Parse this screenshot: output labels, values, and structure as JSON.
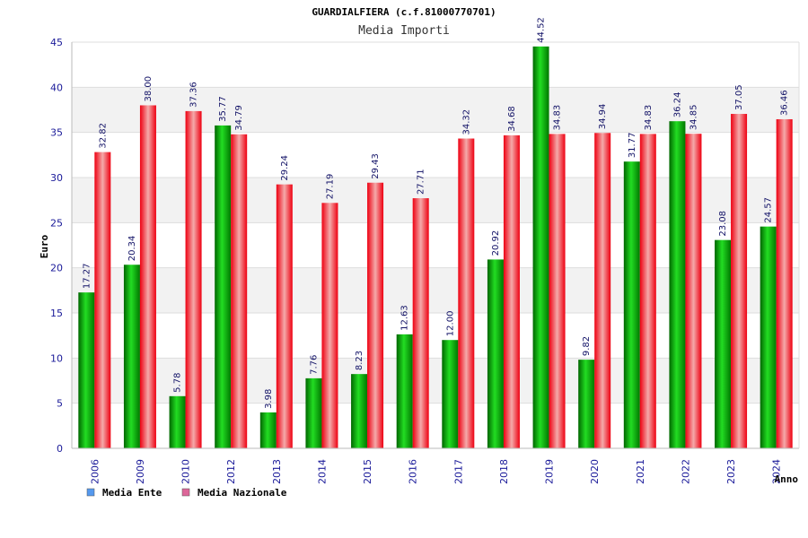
{
  "chart_data": {
    "type": "bar",
    "title": "GUARDIALFIERA (c.f.81000770701)",
    "subtitle": "Media Importi",
    "xlabel": "Anno",
    "ylabel": "Euro",
    "ylim": [
      0,
      45
    ],
    "yticks": [
      "0",
      "5",
      "10",
      "15",
      "20",
      "25",
      "30",
      "35",
      "40",
      "45"
    ],
    "categories": [
      "2006",
      "2009",
      "2010",
      "2012",
      "2013",
      "2014",
      "2015",
      "2016",
      "2017",
      "2018",
      "2019",
      "2020",
      "2021",
      "2022",
      "2023",
      "2024"
    ],
    "series": [
      {
        "name": "Media Ente",
        "color": "#00aa00",
        "values": [
          17.27,
          20.34,
          5.78,
          35.77,
          3.98,
          7.76,
          8.23,
          12.63,
          12.0,
          20.92,
          44.52,
          9.82,
          31.77,
          36.24,
          23.08,
          24.57
        ],
        "labels": [
          "17.27",
          "20.34",
          "5.78",
          "35.77",
          "3.98",
          "7.76",
          "8.23",
          "12.63",
          "12.00",
          "20.92",
          "44.52",
          "9.82",
          "31.77",
          "36.24",
          "23.08",
          "24.57"
        ]
      },
      {
        "name": "Media Nazionale",
        "color": "#ee1122",
        "values": [
          32.82,
          38.0,
          37.36,
          34.79,
          29.24,
          27.19,
          29.43,
          27.71,
          34.32,
          34.68,
          34.83,
          34.94,
          34.83,
          34.85,
          37.05,
          36.46
        ],
        "labels": [
          "32.82",
          "38.00",
          "37.36",
          "34.79",
          "29.24",
          "27.19",
          "29.43",
          "27.71",
          "34.32",
          "34.68",
          "34.83",
          "34.94",
          "34.83",
          "34.85",
          "37.05",
          "36.46"
        ]
      }
    ],
    "legend": {
      "placement": "bottom-left",
      "items": [
        {
          "label": "Media Ente",
          "color": "#5599ee"
        },
        {
          "label": "Media Nazionale",
          "color": "#dd6699"
        }
      ]
    },
    "grid": true
  }
}
